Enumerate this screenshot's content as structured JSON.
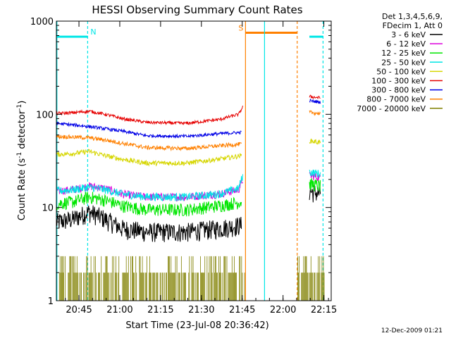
{
  "chart_data": {
    "type": "line",
    "title": "HESSI Observing Summary Count Rates",
    "xlabel": "Start Time (23-Jul-08 20:36:42)",
    "ylabel_main": "Count Rate (s",
    "ylabel_sup1": "-1",
    "ylabel_mid": " detector",
    "ylabel_sup2": "-1",
    "ylabel_end": ")",
    "yscale": "log",
    "ylim": [
      1,
      1000
    ],
    "xlim_minutes": [
      0,
      101
    ],
    "x_ticks": [
      {
        "m": 8.3,
        "label": "20:45"
      },
      {
        "m": 23.3,
        "label": "21:00"
      },
      {
        "m": 38.3,
        "label": "21:15"
      },
      {
        "m": 53.3,
        "label": "21:30"
      },
      {
        "m": 68.3,
        "label": "21:45"
      },
      {
        "m": 83.3,
        "label": "22:00"
      },
      {
        "m": 98.3,
        "label": "22:15"
      }
    ],
    "y_ticks": [
      {
        "v": 1,
        "label": "1"
      },
      {
        "v": 10,
        "label": "10"
      },
      {
        "v": 100,
        "label": "100"
      },
      {
        "v": 1000,
        "label": "1000"
      }
    ],
    "legend_header": [
      "Det 1,3,4,5,6,9,",
      "FDecim 1, Att 0"
    ],
    "series": [
      {
        "name": "3 - 6 keV",
        "color": "#000000",
        "seg1": [
          [
            0,
            7
          ],
          [
            6,
            7.5
          ],
          [
            12,
            9
          ],
          [
            18,
            7.5
          ],
          [
            24,
            6
          ],
          [
            33,
            5.5
          ],
          [
            48,
            5.5
          ],
          [
            60,
            6
          ],
          [
            68,
            6.5
          ]
        ],
        "seg2": [
          [
            93,
            15
          ],
          [
            97,
            14
          ]
        ],
        "noise": 0.12
      },
      {
        "name": "6 - 12 keV",
        "color": "#dd00dd",
        "seg1": [
          [
            0,
            15
          ],
          [
            6,
            15.5
          ],
          [
            12,
            17
          ],
          [
            18,
            16
          ],
          [
            24,
            14
          ],
          [
            33,
            13
          ],
          [
            48,
            13
          ],
          [
            60,
            14
          ],
          [
            67,
            15.5
          ],
          [
            68.5,
            20
          ]
        ],
        "seg2": [
          [
            93,
            22
          ],
          [
            97,
            21
          ]
        ],
        "noise": 0.05
      },
      {
        "name": "12 - 25 keV",
        "color": "#00e600",
        "seg1": [
          [
            0,
            11
          ],
          [
            6,
            11.5
          ],
          [
            12,
            13
          ],
          [
            18,
            12
          ],
          [
            24,
            10.5
          ],
          [
            33,
            9.5
          ],
          [
            48,
            9.5
          ],
          [
            60,
            10.5
          ],
          [
            68,
            11.5
          ]
        ],
        "seg2": [
          [
            93,
            18
          ],
          [
            97,
            17
          ]
        ],
        "noise": 0.08
      },
      {
        "name": "25 - 50 keV",
        "color": "#00e6e6",
        "seg1": [
          [
            0,
            15
          ],
          [
            6,
            15.5
          ],
          [
            12,
            16.5
          ],
          [
            18,
            15.5
          ],
          [
            24,
            14
          ],
          [
            33,
            13
          ],
          [
            48,
            13
          ],
          [
            60,
            14
          ],
          [
            67,
            16
          ],
          [
            68.5,
            22
          ]
        ],
        "seg2": [
          [
            93,
            24
          ],
          [
            97,
            23
          ]
        ],
        "noise": 0.05
      },
      {
        "name": "50 - 100 keV",
        "color": "#d6d600",
        "seg1": [
          [
            0,
            37
          ],
          [
            6,
            38
          ],
          [
            12,
            40
          ],
          [
            18,
            36
          ],
          [
            24,
            33
          ],
          [
            33,
            30
          ],
          [
            48,
            30
          ],
          [
            60,
            33
          ],
          [
            68,
            36
          ]
        ],
        "seg2": [
          [
            93,
            52
          ],
          [
            97,
            50
          ]
        ],
        "noise": 0.03
      },
      {
        "name": "100 - 300 keV",
        "color": "#e60000",
        "seg1": [
          [
            0,
            102
          ],
          [
            6,
            104
          ],
          [
            12,
            108
          ],
          [
            18,
            100
          ],
          [
            24,
            90
          ],
          [
            33,
            82
          ],
          [
            48,
            80
          ],
          [
            60,
            88
          ],
          [
            67,
            100
          ],
          [
            68.5,
            120
          ]
        ],
        "seg2": [
          [
            93,
            155
          ],
          [
            97,
            150
          ]
        ],
        "noise": 0.02
      },
      {
        "name": "300 - 800 keV",
        "color": "#0000e6",
        "seg1": [
          [
            0,
            80
          ],
          [
            6,
            77
          ],
          [
            12,
            74
          ],
          [
            18,
            70
          ],
          [
            24,
            66
          ],
          [
            33,
            59
          ],
          [
            48,
            58
          ],
          [
            60,
            62
          ],
          [
            68,
            64
          ]
        ],
        "seg2": [
          [
            93,
            140
          ],
          [
            97,
            135
          ]
        ],
        "noise": 0.02
      },
      {
        "name": "800 - 7000 keV",
        "color": "#ff8000",
        "seg1": [
          [
            0,
            58
          ],
          [
            6,
            57
          ],
          [
            12,
            56
          ],
          [
            18,
            53
          ],
          [
            24,
            49
          ],
          [
            33,
            44
          ],
          [
            48,
            43
          ],
          [
            60,
            46
          ],
          [
            68,
            48
          ]
        ],
        "seg2": [
          [
            93,
            105
          ],
          [
            97,
            102
          ]
        ],
        "noise": 0.025
      },
      {
        "name": "7000 - 20000 keV",
        "color": "#808000",
        "seg1": [],
        "seg2": [],
        "noise": 0
      }
    ],
    "bars": [
      {
        "label": "N",
        "color": "#00e6e6",
        "start": 0,
        "end": 11.5,
        "level": 680
      },
      {
        "label": "S",
        "color": "#ff8000",
        "start": 69.5,
        "end": 88.5,
        "level": 750
      },
      {
        "label": "",
        "color": "#00e6e6",
        "start": 93.0,
        "end": 98.0,
        "level": 680
      }
    ],
    "vlines": [
      {
        "m": 0.2,
        "color": "#00e6e6",
        "style": "solid"
      },
      {
        "m": 11.5,
        "color": "#00e6e6",
        "style": "dashed"
      },
      {
        "m": 69.5,
        "color": "#ff8000",
        "style": "solid"
      },
      {
        "m": 76.5,
        "color": "#00e6e6",
        "style": "solid"
      },
      {
        "m": 88.5,
        "color": "#ff8000",
        "style": "dashed"
      },
      {
        "m": 98.0,
        "color": "#00e6e6",
        "style": "dashed"
      }
    ]
  },
  "timestamp": "12-Dec-2009 01:21"
}
